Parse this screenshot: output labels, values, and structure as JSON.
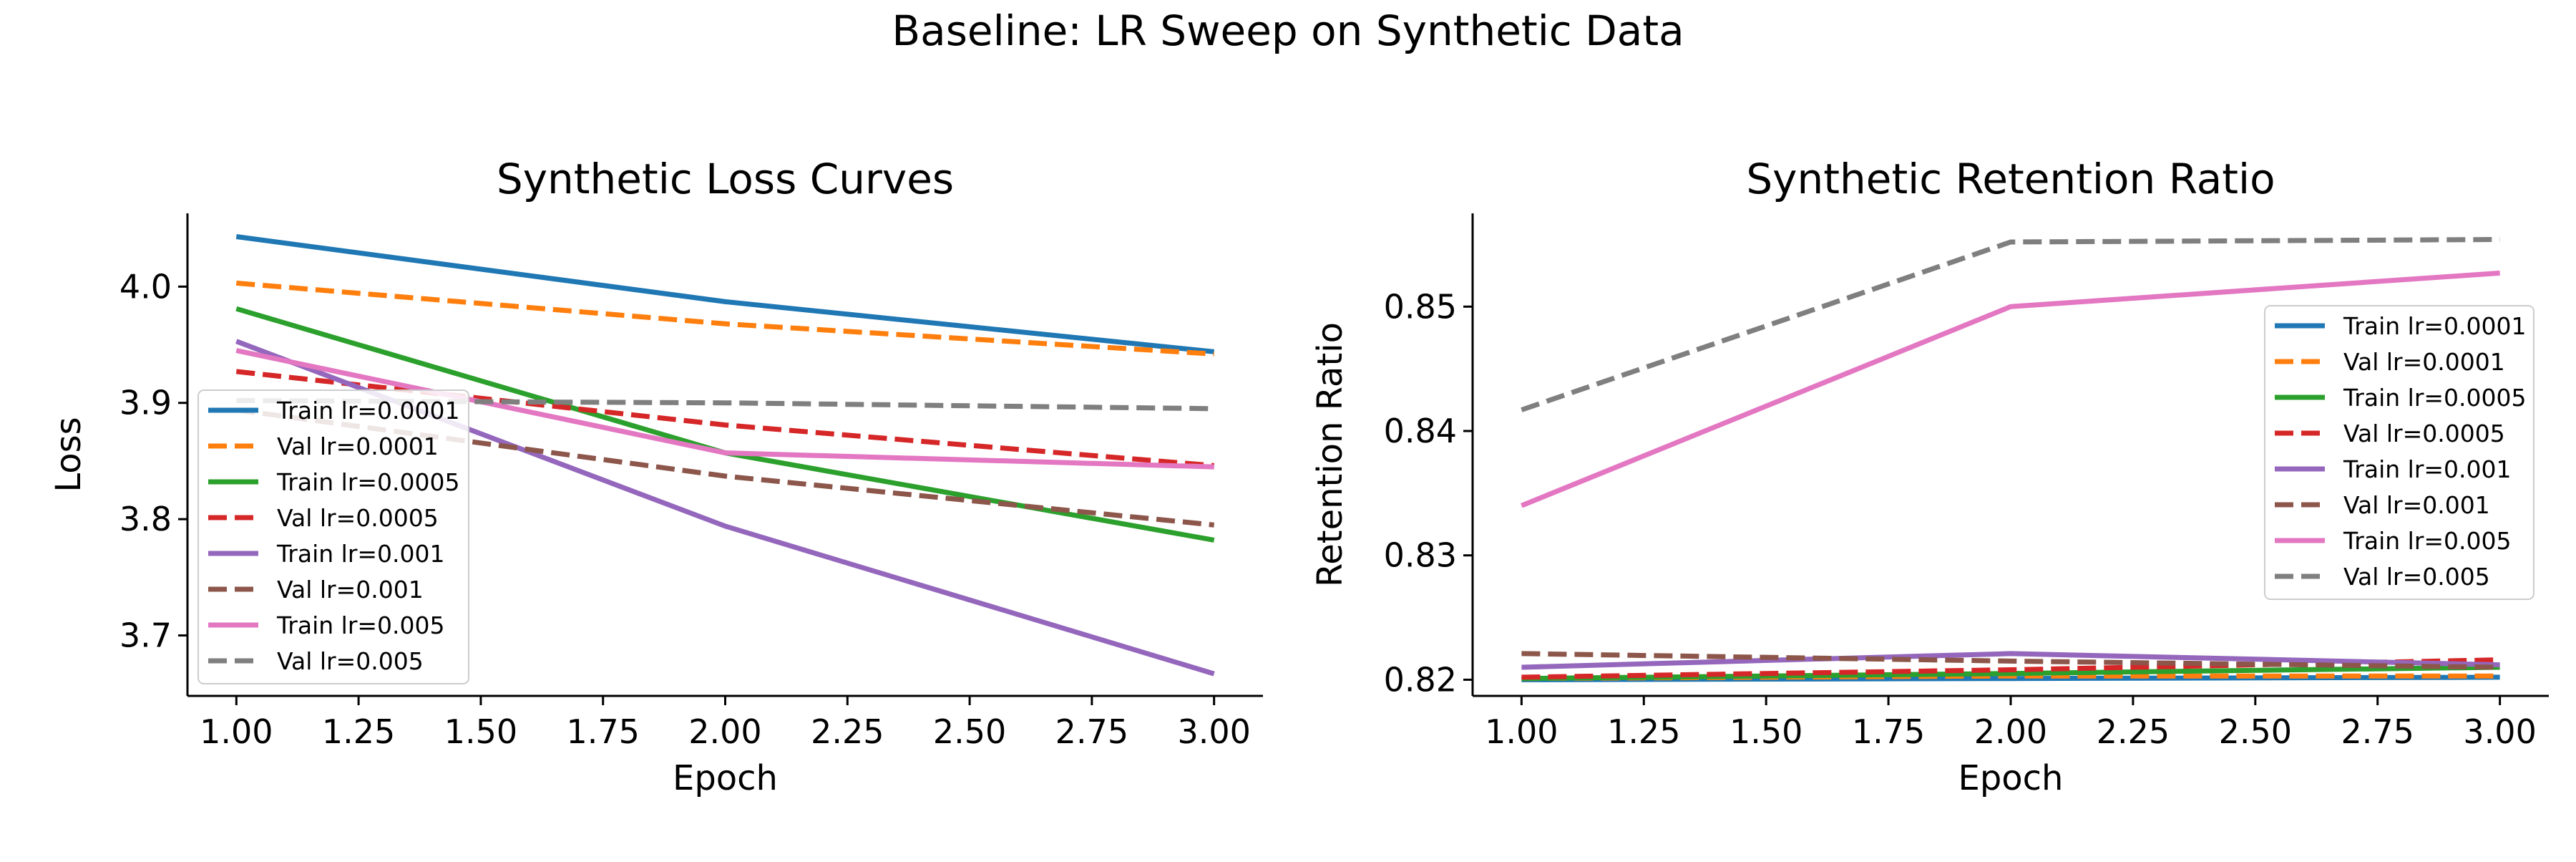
{
  "figure": {
    "suptitle": "Baseline: LR Sweep on Synthetic Data"
  },
  "chart_data": [
    {
      "type": "line",
      "title": "Synthetic Loss Curves",
      "xlabel": "Epoch",
      "ylabel": "Loss",
      "xlim": [
        0.9,
        3.1
      ],
      "ylim": [
        3.648,
        4.063
      ],
      "xticks": [
        "1.00",
        "1.25",
        "1.50",
        "1.75",
        "2.00",
        "2.25",
        "2.50",
        "2.75",
        "3.00"
      ],
      "yticks": [
        "3.7",
        "3.8",
        "3.9",
        "4.0"
      ],
      "legend_position": "lower left",
      "grid": false,
      "x": [
        1,
        2,
        3
      ],
      "series": [
        {
          "name": "Train lr=0.0001",
          "values": [
            4.043,
            3.987,
            3.944
          ],
          "color": "#1f77b4",
          "dash": "solid"
        },
        {
          "name": "Val lr=0.0001",
          "values": [
            4.003,
            3.968,
            3.942
          ],
          "color": "#ff7f0e",
          "dash": "dashed"
        },
        {
          "name": "Train lr=0.0005",
          "values": [
            3.981,
            3.857,
            3.782
          ],
          "color": "#2ca02c",
          "dash": "solid"
        },
        {
          "name": "Val lr=0.0005",
          "values": [
            3.927,
            3.881,
            3.846
          ],
          "color": "#d62728",
          "dash": "dashed"
        },
        {
          "name": "Train lr=0.001",
          "values": [
            3.953,
            3.794,
            3.667
          ],
          "color": "#9467bd",
          "dash": "solid"
        },
        {
          "name": "Val lr=0.001",
          "values": [
            3.894,
            3.837,
            3.795
          ],
          "color": "#8c564b",
          "dash": "dashed"
        },
        {
          "name": "Train lr=0.005",
          "values": [
            3.945,
            3.857,
            3.845
          ],
          "color": "#e377c2",
          "dash": "solid"
        },
        {
          "name": "Val lr=0.005",
          "values": [
            3.902,
            3.9,
            3.895
          ],
          "color": "#7f7f7f",
          "dash": "dashed"
        }
      ]
    },
    {
      "type": "line",
      "title": "Synthetic Retention Ratio",
      "xlabel": "Epoch",
      "ylabel": "Retention Ratio",
      "xlim": [
        0.9,
        3.1
      ],
      "ylim": [
        0.8187,
        0.8575
      ],
      "xticks": [
        "1.00",
        "1.25",
        "1.50",
        "1.75",
        "2.00",
        "2.25",
        "2.50",
        "2.75",
        "3.00"
      ],
      "yticks": [
        "0.82",
        "0.83",
        "0.84",
        "0.85"
      ],
      "legend_position": "center right",
      "grid": false,
      "x": [
        1,
        2,
        3
      ],
      "series": [
        {
          "name": "Train lr=0.0001",
          "values": [
            0.82,
            0.8201,
            0.8202
          ],
          "color": "#1f77b4",
          "dash": "solid"
        },
        {
          "name": "Val lr=0.0001",
          "values": [
            0.8201,
            0.8203,
            0.8203
          ],
          "color": "#ff7f0e",
          "dash": "dashed"
        },
        {
          "name": "Train lr=0.0005",
          "values": [
            0.8201,
            0.8205,
            0.821
          ],
          "color": "#2ca02c",
          "dash": "solid"
        },
        {
          "name": "Val lr=0.0005",
          "values": [
            0.8202,
            0.8208,
            0.8216
          ],
          "color": "#d62728",
          "dash": "dashed"
        },
        {
          "name": "Train lr=0.001",
          "values": [
            0.821,
            0.8221,
            0.8212
          ],
          "color": "#9467bd",
          "dash": "solid"
        },
        {
          "name": "Val lr=0.001",
          "values": [
            0.8221,
            0.8215,
            0.821
          ],
          "color": "#8c564b",
          "dash": "dashed"
        },
        {
          "name": "Train lr=0.005",
          "values": [
            0.834,
            0.85,
            0.8527
          ],
          "color": "#e377c2",
          "dash": "solid"
        },
        {
          "name": "Val lr=0.005",
          "values": [
            0.8417,
            0.8552,
            0.8554
          ],
          "color": "#7f7f7f",
          "dash": "dashed"
        }
      ]
    }
  ]
}
